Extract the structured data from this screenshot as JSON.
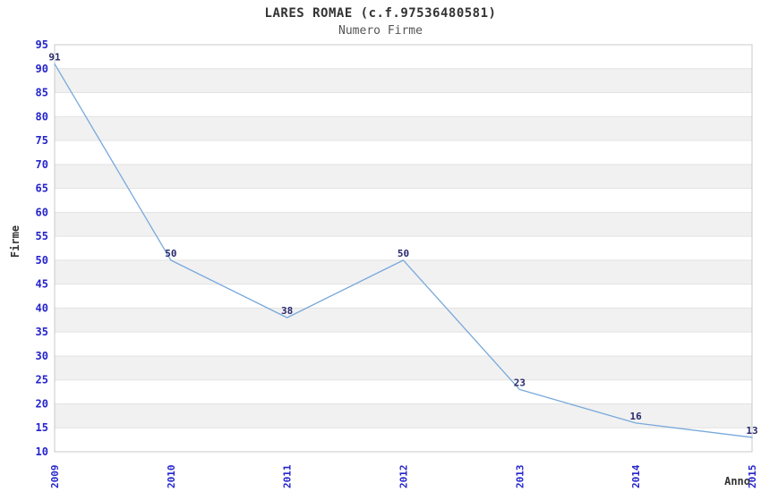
{
  "header": {
    "title": "LARES ROMAE (c.f.97536480581)",
    "subtitle": "Numero Firme"
  },
  "chart_data": {
    "type": "line",
    "title": "LARES ROMAE (c.f.97536480581)",
    "subtitle": "Numero Firme",
    "xlabel": "Anno",
    "ylabel": "Firme",
    "categories": [
      "2009",
      "2010",
      "2011",
      "2012",
      "2013",
      "2014",
      "2015"
    ],
    "series": [
      {
        "name": "Numero Firme",
        "values": [
          91,
          50,
          38,
          50,
          23,
          16,
          13
        ]
      }
    ],
    "data_labels": [
      91,
      50,
      38,
      50,
      23,
      16,
      13
    ],
    "ylim": [
      10,
      95
    ],
    "ytick_step": 5,
    "grid": "alternating-horizontal-bands",
    "legend_position": "none"
  },
  "colors": {
    "background": "#ffffff",
    "band_gray": "#f1f1f1",
    "grid_line": "#e2e2e2",
    "plot_border": "#c9c9c9",
    "series_line": "#79a9dc",
    "tick_label": "#2424cc",
    "data_label": "#28286e",
    "title": "#333333",
    "subtitle": "#555555",
    "axis_title": "#333333"
  }
}
